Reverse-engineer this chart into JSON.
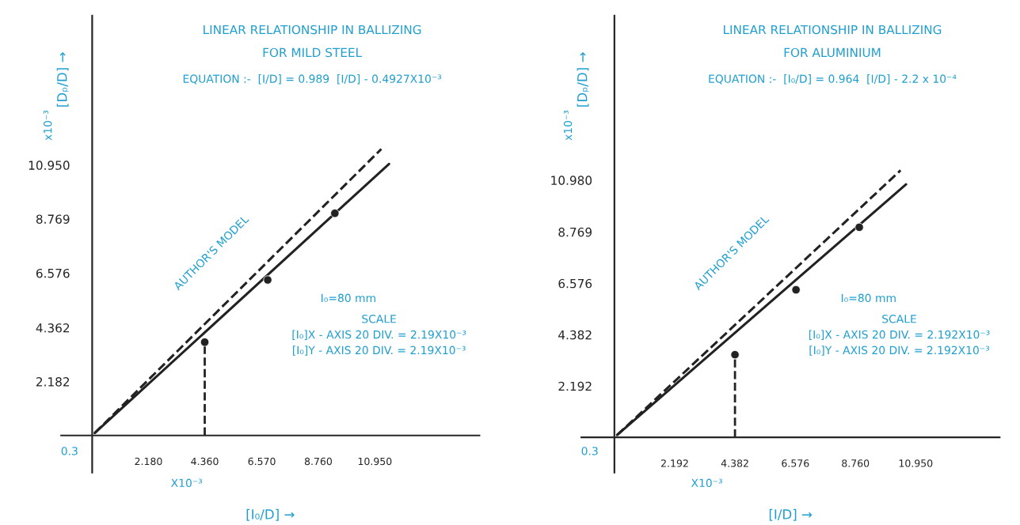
{
  "chart_data": [
    {
      "type": "line",
      "title": "LINEAR RELATIONSHIP IN BALLIZING",
      "subtitle": "FOR MILD STEEL",
      "xlabel": "[I₀/D] →",
      "ylabel": "[Dₚ/D] →",
      "series": [
        {
          "color": "#222222",
          "line_style": "solid",
          "x": [
            0.1,
            11.5
          ],
          "values": [
            0.1,
            11.0
          ]
        },
        {
          "color": "#222222",
          "line_style": "dashed",
          "x": [
            0.1,
            11.2
          ],
          "values": [
            0.1,
            11.6
          ]
        },
        {
          "type": "scatter",
          "color": "#222222",
          "marker": "circle",
          "x": [
            4.36,
            6.8,
            9.4
          ],
          "values": [
            3.78,
            6.3,
            9.0
          ]
        }
      ],
      "ref_lines": [
        {
          "axis": "x",
          "value": 4.36,
          "line_style": "dashed",
          "color": "#222222"
        }
      ],
      "annotations": [
        "EQUATION :-  [I/D] = 0.989  [I/D] - 0.4927X10⁻³",
        "AUTHOR'S MODEL",
        "I₀=80 mm",
        "SCALE\n[I₀]X - AXIS 20 DIV. = 2.19X10⁻³\n[I₀]Y - AXIS 20 DIV. = 2.19X10⁻³",
        "X10⁻³",
        "x10⁻³",
        "0.3"
      ],
      "xlim": [
        -1.2,
        15
      ],
      "ylim": [
        -1.5,
        17
      ],
      "xticks": [
        {
          "value": 2.18,
          "label": "2.180"
        },
        {
          "value": 4.36,
          "label": "4.360"
        },
        {
          "value": 6.57,
          "label": "6.570"
        },
        {
          "value": 8.76,
          "label": "8.760"
        },
        {
          "value": 10.95,
          "label": "10.950"
        }
      ],
      "yticks": [
        2.182,
        4.362,
        6.576,
        8.769,
        {
          "value": 10.95,
          "label": "10.950"
        }
      ],
      "grid": false,
      "legend": false
    },
    {
      "type": "line",
      "title": "LINEAR RELATIONSHIP IN BALLIZING",
      "subtitle": "FOR ALUMINIUM",
      "xlabel": "[I/D] →",
      "ylabel": "[Dₚ/D] →",
      "series": [
        {
          "color": "#222222",
          "line_style": "solid",
          "x": [
            0.1,
            10.6
          ],
          "values": [
            0.1,
            10.8
          ]
        },
        {
          "color": "#222222",
          "line_style": "dashed",
          "x": [
            0.1,
            10.4
          ],
          "values": [
            0.1,
            11.4
          ]
        },
        {
          "type": "scatter",
          "color": "#222222",
          "marker": "circle",
          "x": [
            4.382,
            6.6,
            8.9
          ],
          "values": [
            3.53,
            6.3,
            8.97
          ]
        }
      ],
      "ref_lines": [
        {
          "axis": "x",
          "value": 4.382,
          "line_style": "dashed",
          "color": "#222222"
        }
      ],
      "annotations": [
        "EQUATION :-  [I₀/D] = 0.964  [I/D] - 2.2 x 10⁻⁴",
        "AUTHOR'S MODEL",
        "I₀=80 mm",
        "SCALE\n[I₀]X - AXIS 20 DIV. = 2.192X10⁻³\n[I₀]Y - AXIS 20 DIV. = 2.192X10⁻³",
        "X10⁻³",
        "x10⁻³",
        "0.3"
      ],
      "xlim": [
        -1.2,
        14
      ],
      "ylim": [
        -1.5,
        18
      ],
      "xticks": [
        2.192,
        4.382,
        6.576,
        {
          "value": 8.76,
          "label": "8.760"
        },
        {
          "value": 10.95,
          "label": "10.950"
        }
      ],
      "yticks": [
        2.192,
        4.382,
        6.576,
        8.769,
        {
          "value": 10.98,
          "label": "10.980"
        }
      ],
      "grid": false,
      "legend": false
    }
  ]
}
